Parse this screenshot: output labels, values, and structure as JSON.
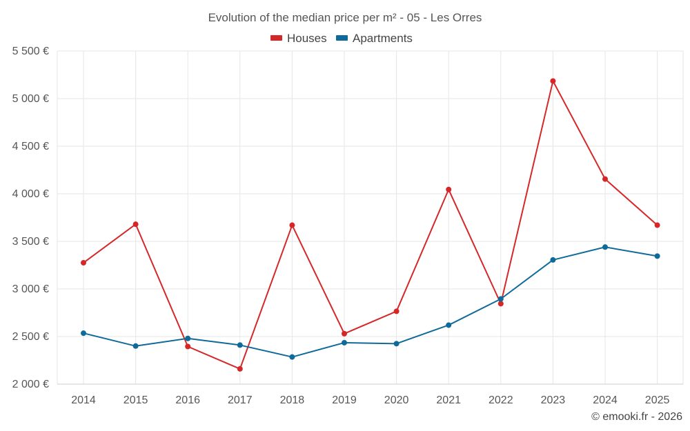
{
  "chart_data": {
    "type": "line",
    "title": "Evolution of the median price per m² - 05 - Les Orres",
    "categories": [
      "2014",
      "2015",
      "2016",
      "2017",
      "2018",
      "2019",
      "2020",
      "2021",
      "2022",
      "2023",
      "2024",
      "2025"
    ],
    "series": [
      {
        "name": "Houses",
        "color": "#d62728",
        "values": [
          3275,
          3680,
          2395,
          2160,
          3670,
          2530,
          2765,
          4045,
          2845,
          5185,
          4155,
          3670
        ]
      },
      {
        "name": "Apartments",
        "color": "#0f6a9a",
        "values": [
          2535,
          2400,
          2480,
          2410,
          2285,
          2435,
          2425,
          2620,
          2895,
          3305,
          3440,
          3345
        ]
      }
    ],
    "yticks": [
      2000,
      2500,
      3000,
      3500,
      4000,
      4500,
      5000,
      5500
    ],
    "ytick_labels": [
      "2 000 €",
      "2 500 €",
      "3 000 €",
      "3 500 €",
      "4 000 €",
      "4 500 €",
      "5 000 €",
      "5 500 €"
    ],
    "ylim": [
      2000,
      5500
    ],
    "xlabel": "",
    "ylabel": "",
    "grid": true,
    "legend_position": "top-center"
  },
  "credit": "© emooki.fr - 2026"
}
